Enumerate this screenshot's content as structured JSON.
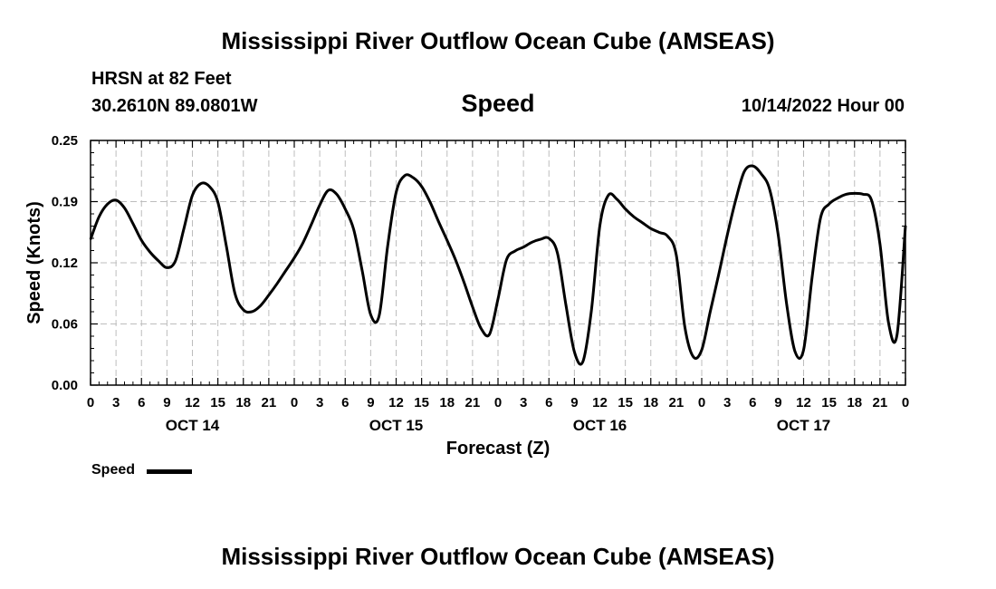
{
  "header": {
    "title": "Mississippi River Outflow Ocean Cube (AMSEAS)",
    "station": "HRSN at 82 Feet",
    "coords": "30.2610N  89.0801W",
    "panel_title": "Speed",
    "run_time": "10/14/2022 Hour 00"
  },
  "footer": {
    "title": "Mississippi River Outflow Ocean Cube (AMSEAS)"
  },
  "legend": {
    "label": "Speed",
    "color": "#000000"
  },
  "chart_data": {
    "type": "line",
    "title": "Speed",
    "xlabel": "Forecast (Z)",
    "ylabel": "Speed (Knots)",
    "xlim": [
      0,
      96
    ],
    "ylim": [
      0,
      0.25
    ],
    "grid": true,
    "y_ticks": [
      "0.00",
      "0.06",
      "0.12",
      "0.19",
      "0.25"
    ],
    "y_tick_values": [
      0,
      0.0625,
      0.125,
      0.1875,
      0.25
    ],
    "x_tick_hours": [
      0,
      3,
      6,
      9,
      12,
      15,
      18,
      21,
      24,
      27,
      30,
      33,
      36,
      39,
      42,
      45,
      48,
      51,
      54,
      57,
      60,
      63,
      66,
      69,
      72,
      75,
      78,
      81,
      84,
      87,
      90,
      93,
      96
    ],
    "x_tick_labels": [
      "0",
      "3",
      "6",
      "9",
      "12",
      "15",
      "18",
      "21",
      "0",
      "3",
      "6",
      "9",
      "12",
      "15",
      "18",
      "21",
      "0",
      "3",
      "6",
      "9",
      "12",
      "15",
      "18",
      "21",
      "0",
      "3",
      "6",
      "9",
      "12",
      "15",
      "18",
      "21",
      "0"
    ],
    "day_labels": [
      {
        "label": "OCT 14",
        "hour": 12
      },
      {
        "label": "OCT 15",
        "hour": 36
      },
      {
        "label": "OCT 16",
        "hour": 60
      },
      {
        "label": "OCT 17",
        "hour": 84
      }
    ],
    "series": [
      {
        "name": "Speed",
        "color": "#000000",
        "x": [
          0,
          1,
          2,
          3,
          4,
          5,
          6,
          7,
          8,
          9,
          10,
          11,
          12,
          13,
          14,
          15,
          16,
          17,
          18,
          19,
          20,
          21,
          22,
          23,
          24,
          25,
          26,
          27,
          28,
          29,
          30,
          31,
          32,
          33,
          34,
          35,
          36,
          37,
          38,
          39,
          40,
          41,
          42,
          43,
          44,
          45,
          46,
          47,
          48,
          49,
          50,
          51,
          52,
          53,
          54,
          55,
          56,
          57,
          58,
          59,
          60,
          61,
          62,
          63,
          64,
          65,
          66,
          67,
          68,
          69,
          70,
          71,
          72,
          73,
          74,
          75,
          76,
          77,
          78,
          79,
          80,
          81,
          82,
          83,
          84,
          85,
          86,
          87,
          88,
          89,
          90,
          91,
          92,
          93,
          94,
          95,
          96
        ],
        "values": [
          0.149,
          0.172,
          0.185,
          0.189,
          0.181,
          0.165,
          0.148,
          0.136,
          0.127,
          0.12,
          0.127,
          0.16,
          0.194,
          0.206,
          0.203,
          0.187,
          0.142,
          0.094,
          0.077,
          0.075,
          0.081,
          0.092,
          0.104,
          0.117,
          0.13,
          0.145,
          0.164,
          0.184,
          0.199,
          0.195,
          0.18,
          0.159,
          0.117,
          0.072,
          0.071,
          0.142,
          0.197,
          0.214,
          0.212,
          0.203,
          0.187,
          0.167,
          0.148,
          0.128,
          0.105,
          0.08,
          0.058,
          0.052,
          0.088,
          0.128,
          0.137,
          0.141,
          0.146,
          0.149,
          0.15,
          0.135,
          0.082,
          0.034,
          0.024,
          0.076,
          0.163,
          0.194,
          0.19,
          0.18,
          0.172,
          0.166,
          0.16,
          0.156,
          0.152,
          0.133,
          0.06,
          0.029,
          0.036,
          0.075,
          0.113,
          0.153,
          0.189,
          0.218,
          0.224,
          0.216,
          0.2,
          0.154,
          0.083,
          0.034,
          0.036,
          0.11,
          0.171,
          0.185,
          0.191,
          0.195,
          0.196,
          0.195,
          0.189,
          0.144,
          0.064,
          0.051,
          0.163
        ]
      }
    ]
  }
}
